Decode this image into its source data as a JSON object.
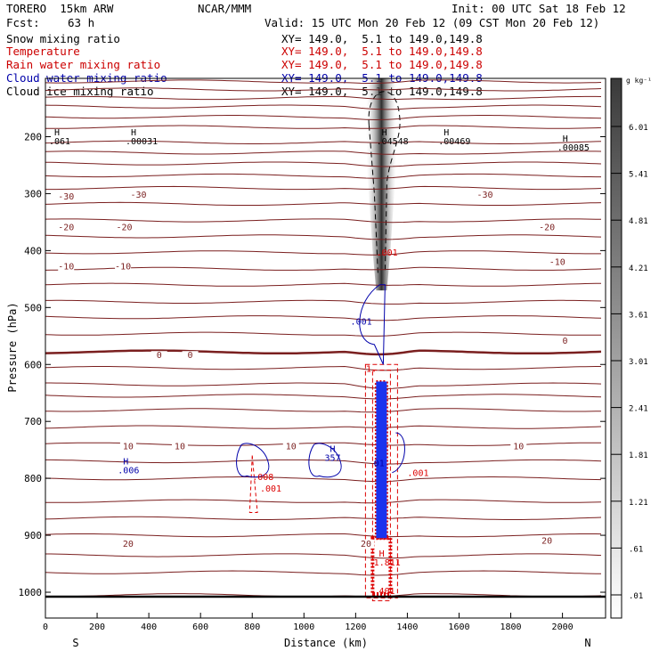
{
  "header": {
    "model": "TORERO  15km ARW",
    "org": "NCAR/MMM",
    "init": "Init: 00 UTC Sat 18 Feb 12",
    "fcst_label": "Fcst:",
    "fcst_value": "63 h",
    "valid": "Valid: 15 UTC Mon 20 Feb 12 (09 CST Mon 20 Feb 12)"
  },
  "fields": [
    {
      "name": "Snow mixing ratio",
      "xy": "XY= 149.0,  5.1 to 149.0,149.8",
      "color": "#000000"
    },
    {
      "name": "Temperature",
      "xy": "XY= 149.0,  5.1 to 149.0,149.8",
      "color": "#cc0000"
    },
    {
      "name": "Rain water mixing ratio",
      "xy": "XY= 149.0,  5.1 to 149.0,149.8",
      "color": "#cc0000"
    },
    {
      "name": "Cloud water mixing ratio",
      "xy": "XY= 149.0,  5.1 to 149.0,149.8",
      "color": "#0000aa"
    },
    {
      "name": "Cloud ice mixing ratio",
      "xy": "XY= 149.0,  5.1 to 149.0,149.8",
      "color": "#000000"
    }
  ],
  "chart_data": {
    "type": "cross-section contour",
    "xlabel": "Distance (km)",
    "ylabel": "Pressure (hPa)",
    "xlim": [
      0,
      2160
    ],
    "ylim": [
      1040,
      90
    ],
    "x_ticks": [
      0,
      200,
      400,
      600,
      800,
      1000,
      1200,
      1400,
      1600,
      1800,
      2000
    ],
    "y_ticks": [
      200,
      300,
      400,
      500,
      600,
      700,
      800,
      900,
      1000
    ],
    "end_labels": {
      "left": "S",
      "right": "N"
    },
    "colorbar": {
      "unit": "g kg⁻¹",
      "labels": [
        "6.01",
        "5.41",
        "4.81",
        "4.21",
        "3.61",
        "3.01",
        "2.41",
        "1.81",
        "1.21",
        ".61",
        ".01"
      ]
    },
    "isotherm_pressures": [
      103,
      117,
      132,
      147,
      165,
      183,
      210,
      228,
      247,
      268,
      290,
      318,
      347,
      375,
      403,
      432,
      460,
      490,
      517,
      546,
      578,
      606,
      635,
      655,
      680,
      710,
      740,
      770,
      800,
      840,
      870,
      900,
      935,
      965,
      1005
    ],
    "isotherm_labels": [
      {
        "text": "-30",
        "x": 80,
        "p": 310
      },
      {
        "text": "-30",
        "x": 360,
        "p": 307
      },
      {
        "text": "-30",
        "x": 1700,
        "p": 307
      },
      {
        "text": "-20",
        "x": 80,
        "p": 364
      },
      {
        "text": "-20",
        "x": 305,
        "p": 364
      },
      {
        "text": "-20",
        "x": 1940,
        "p": 364
      },
      {
        "text": "-10",
        "x": 80,
        "p": 433
      },
      {
        "text": "-10",
        "x": 300,
        "p": 433
      },
      {
        "text": "-10",
        "x": 1980,
        "p": 425
      },
      {
        "text": "0",
        "x": 440,
        "p": 589
      },
      {
        "text": "0",
        "x": 560,
        "p": 589
      },
      {
        "text": "0",
        "x": 2010,
        "p": 564
      },
      {
        "text": "10",
        "x": 320,
        "p": 749
      },
      {
        "text": "10",
        "x": 520,
        "p": 749
      },
      {
        "text": "10",
        "x": 950,
        "p": 749
      },
      {
        "text": "10",
        "x": 1830,
        "p": 749
      },
      {
        "text": "20",
        "x": 320,
        "p": 920
      },
      {
        "text": "20",
        "x": 1240,
        "p": 920
      },
      {
        "text": "20",
        "x": 1940,
        "p": 915
      }
    ],
    "snow_max_labels": [
      {
        "h": "H",
        "v": ".061",
        "x": 0,
        "p": 213
      },
      {
        "h": "H",
        "v": ".00031",
        "x": 310,
        "p": 213
      },
      {
        "h": "H",
        "v": ".04548",
        "x": 1280,
        "p": 213
      },
      {
        "h": "H",
        "v": ".00469",
        "x": 1520,
        "p": 213
      },
      {
        "h": "H",
        "v": ".00085",
        "x": 1980,
        "p": 224
      }
    ],
    "cloud_water_labels": [
      {
        "h": "H",
        "v": ".006",
        "x": 280,
        "p": 791
      },
      {
        "h": "H",
        "v": "357",
        "x": 1080,
        "p": 769
      },
      {
        "h": "",
        "v": ".001",
        "x": 1180,
        "p": 530
      },
      {
        "h": "",
        "v": "01",
        "x": 1270,
        "p": 779
      }
    ],
    "rain_labels": [
      {
        "h": "H",
        "v": "1.811",
        "x": 1270,
        "p": 953
      },
      {
        "h": "",
        "v": "401",
        "x": 1290,
        "p": 1003
      },
      {
        "h": "",
        "v": ".001",
        "x": 1400,
        "p": 796
      },
      {
        "h": "",
        "v": ".008",
        "x": 800,
        "p": 803
      },
      {
        "h": "",
        "v": ".001",
        "x": 830,
        "p": 823
      },
      {
        "h": "",
        "v": ".001",
        "x": 1280,
        "p": 409
      },
      {
        "h": "",
        "v": "1.",
        "x": 1240,
        "p": 613
      }
    ]
  }
}
